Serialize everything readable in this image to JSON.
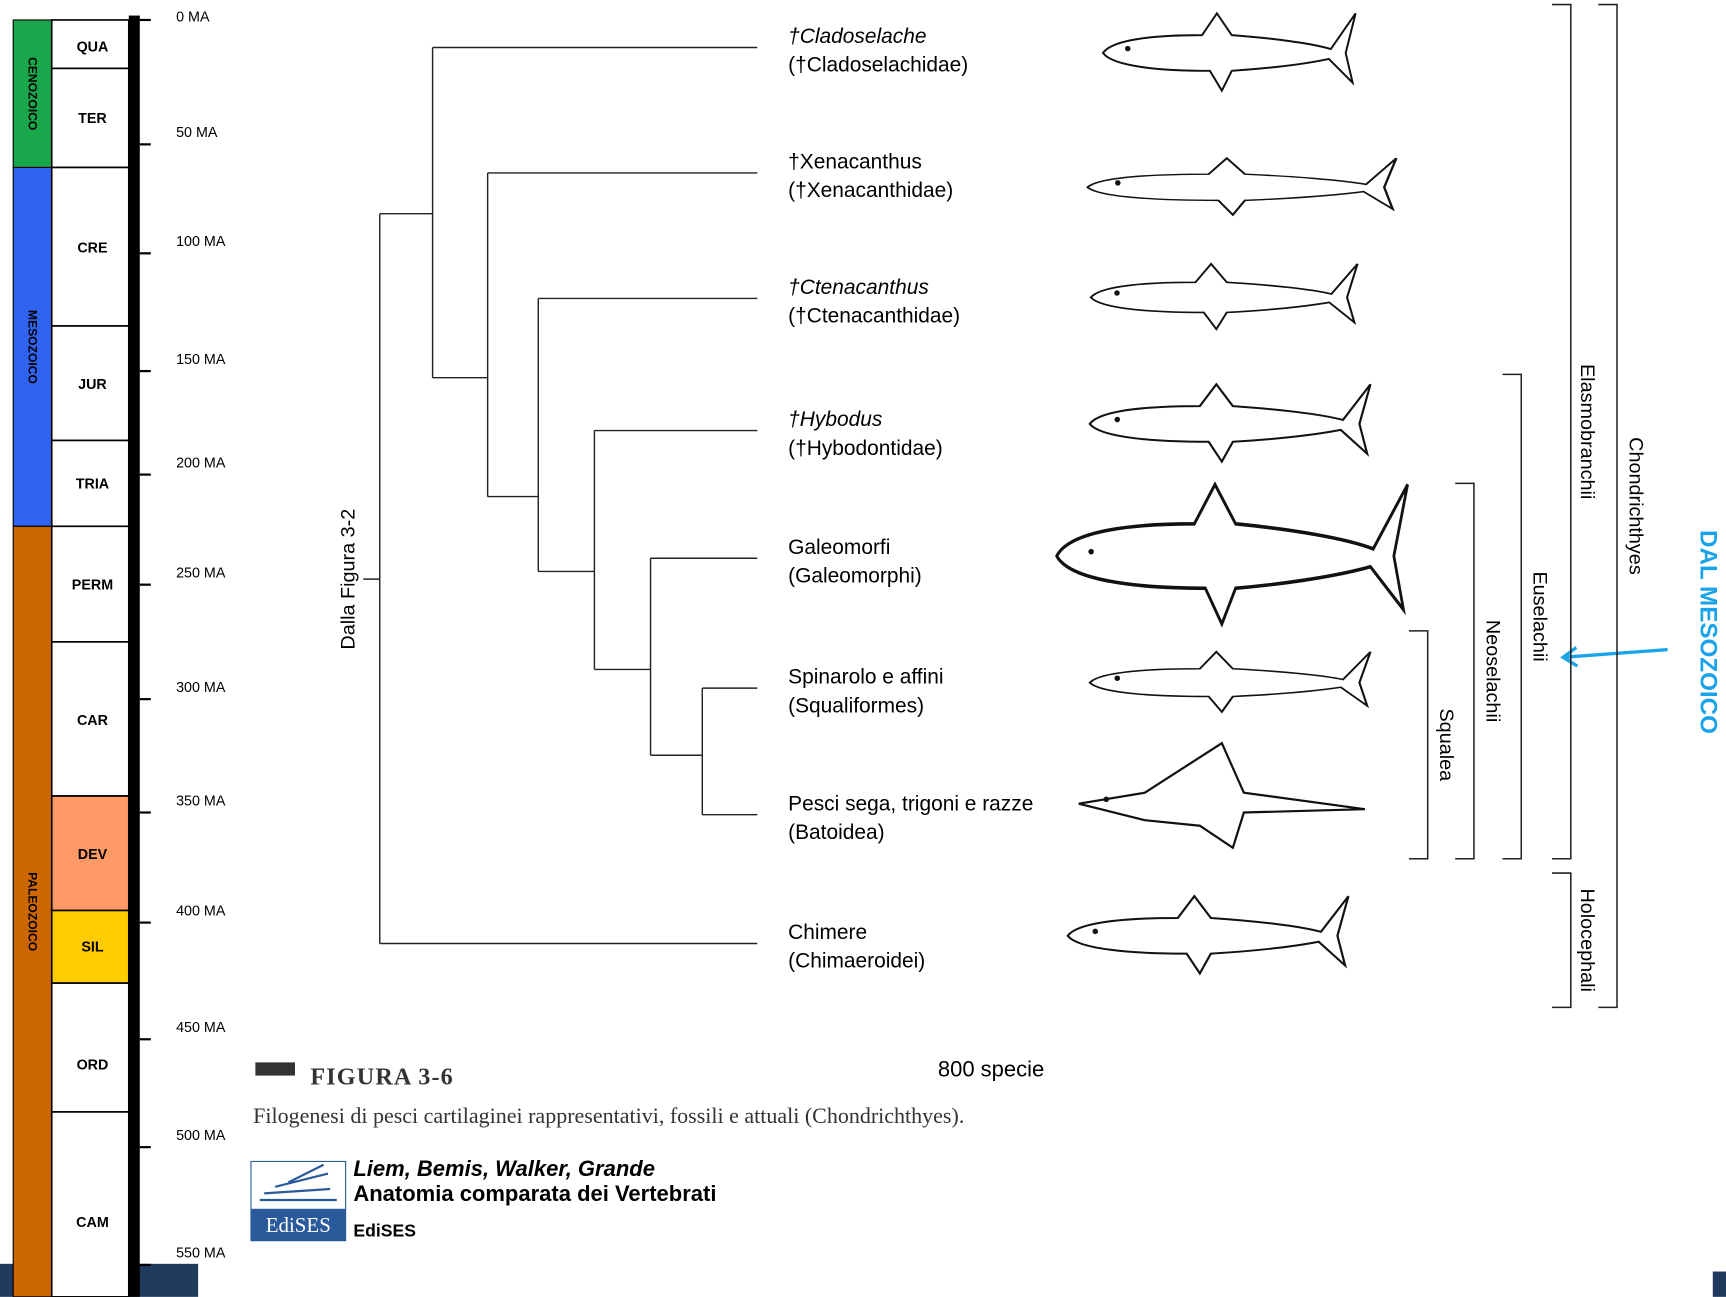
{
  "timescale": {
    "eras": [
      "CENOZOICO",
      "MESOZOICO",
      "PALEOZOICO"
    ],
    "periods": [
      "QUA",
      "TER",
      "CRE",
      "JUR",
      "TRIA",
      "PERM",
      "CAR",
      "DEV",
      "SIL",
      "ORD",
      "CAM"
    ],
    "ticks": [
      "0 MA",
      "50 MA",
      "100 MA",
      "150 MA",
      "200 MA",
      "250 MA",
      "300 MA",
      "350 MA",
      "400 MA",
      "450 MA",
      "500 MA",
      "550 MA"
    ]
  },
  "tree": {
    "root_label": "Dalla Figura 3-2",
    "taxa": [
      {
        "name": "†Cladoselache",
        "family": "(†Cladoselachidae)"
      },
      {
        "name": "†Xenacanthus",
        "family": "(†Xenacanthidae)"
      },
      {
        "name": "†Ctenacanthus",
        "family": "(†Ctenacanthidae)"
      },
      {
        "name": "†Hybodus",
        "family": "(†Hybodontidae)"
      },
      {
        "name": "Galeomorfi",
        "family": "(Galeomorphi)"
      },
      {
        "name": "Spinarolo e affini",
        "family": "(Squaliformes)"
      },
      {
        "name": "Pesci sega, trigoni e razze",
        "family": "(Batoidea)"
      },
      {
        "name": "Chimere",
        "family": "(Chimaeroidei)"
      }
    ]
  },
  "clades": [
    "Squalea",
    "Neoselachii",
    "Euselachii",
    "Elasmobranchii",
    "Holocephali",
    "Chondrichthyes"
  ],
  "annotation": "DAL MESOZOICO",
  "species_count": "800 specie",
  "figure": {
    "label": "FIGURA 3-6",
    "caption": "Filogenesi di pesci cartilaginei rappresentativi, fossili e attuali (Chondrichthyes)."
  },
  "publisher": {
    "authors": "Liem, Bemis, Walker, Grande",
    "book": "Anatomia comparata dei Vertebrati",
    "logo": "EdiSES",
    "name": "EdiSES"
  }
}
